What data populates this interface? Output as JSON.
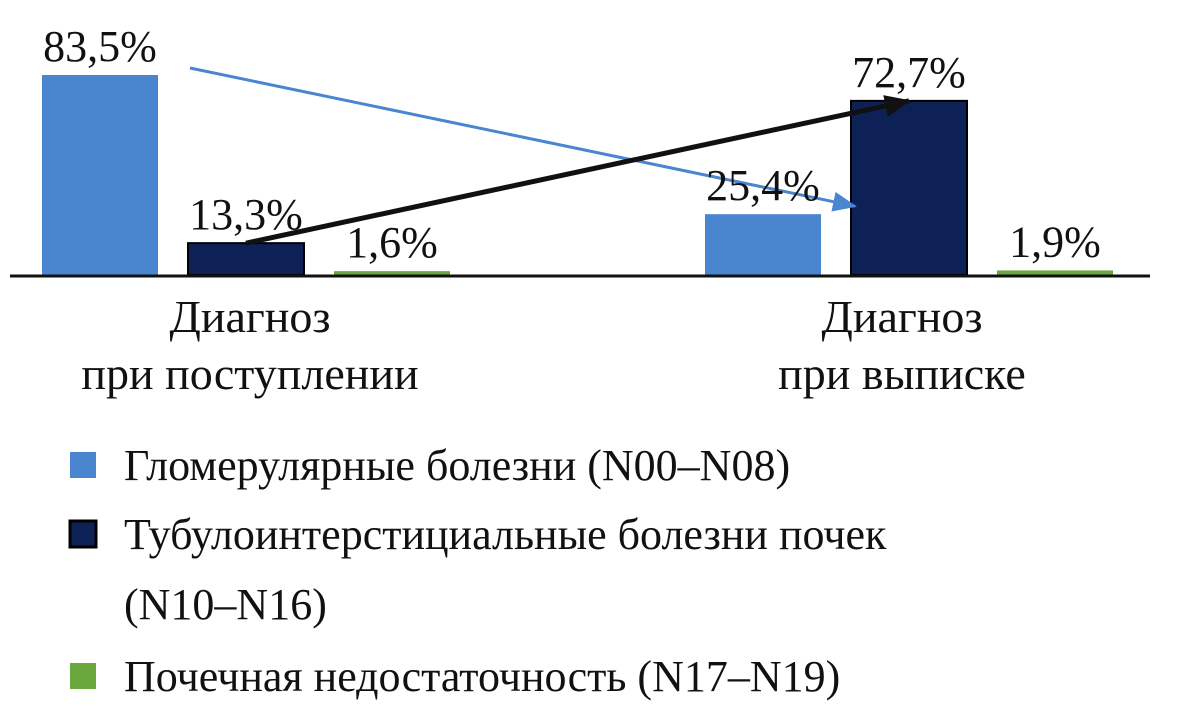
{
  "chart_data": {
    "type": "bar",
    "categories": [
      [
        "Диагноз",
        "при поступлении"
      ],
      [
        "Диагноз",
        "при выписке"
      ]
    ],
    "series": [
      {
        "name": "Гломерулярные болезни (N00–N08)",
        "values": [
          83.5,
          25.4
        ],
        "labels": [
          "83,5%",
          "25,4%"
        ],
        "color": "#4a86cf"
      },
      {
        "name": "Тубулоинтерстициальные болезни почек (N10–N16)",
        "name_lines": [
          "Тубулоинтерстициальные болезни почек",
          "(N10–N16)"
        ],
        "values": [
          13.3,
          72.7
        ],
        "labels": [
          "13,3%",
          "72,7%"
        ],
        "color": "#0e2157"
      },
      {
        "name": "Почечная недостаточность (N17–N19)",
        "values": [
          1.6,
          1.9
        ],
        "labels": [
          "1,6%",
          "1,9%"
        ],
        "color": "#6aa83e"
      }
    ],
    "ylim": [
      0,
      100
    ],
    "grid": false,
    "legend": "bottom",
    "annotations": [
      {
        "type": "arrow",
        "series": 0,
        "from_category": 0,
        "to_category": 1,
        "color": "#4a86cf"
      },
      {
        "type": "arrow",
        "series": 1,
        "from_category": 0,
        "to_category": 1,
        "color": "#111111"
      }
    ]
  }
}
